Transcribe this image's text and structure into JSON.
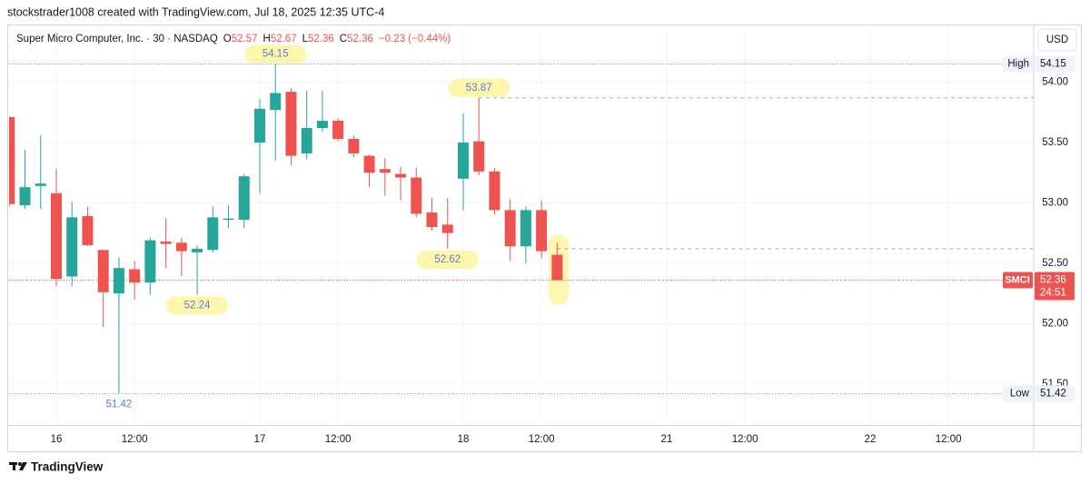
{
  "chart_data": {
    "type": "candlestick",
    "watermark": "stockstrader1008 created with TradingView.com, Jul 18, 2025 12:35 UTC-4",
    "title": "Super Micro Computer, Inc. · 30 · NASDAQ",
    "ohlc_keys": [
      "O",
      "H",
      "L",
      "C"
    ],
    "change": "−0.23 (−0.44%)",
    "currency": "USD",
    "symbol": "SMCI",
    "countdown": "24:51",
    "brand": "TradingView",
    "up_color": "#26a69a",
    "down_color": "#ef5350",
    "categories": [
      null,
      null,
      null,
      "16",
      null,
      null,
      null,
      null,
      "12:00",
      null,
      null,
      null,
      null,
      null,
      null,
      null,
      "17",
      null,
      null,
      null,
      null,
      "12:00",
      null,
      null,
      null,
      null,
      null,
      null,
      null,
      "18",
      null,
      null,
      null,
      null,
      "12:00",
      null,
      null,
      null,
      null,
      null,
      null,
      null,
      "21",
      null,
      null,
      null,
      null,
      "12:00",
      null,
      null,
      null,
      null,
      null,
      null,
      null,
      "22",
      null,
      null,
      null,
      null,
      "12:00",
      null,
      null,
      null,
      null,
      null
    ],
    "open": [
      53.71,
      52.98,
      53.14,
      53.08,
      52.39,
      52.89,
      52.61,
      52.25,
      52.45,
      52.34,
      52.68,
      52.67,
      52.59,
      52.61,
      52.86,
      52.86,
      53.5,
      53.77,
      53.92,
      53.41,
      53.62,
      53.68,
      53.53,
      53.39,
      53.28,
      53.24,
      53.21,
      52.92,
      52.82,
      53.2,
      53.51,
      53.26,
      52.94,
      52.64,
      52.94,
      52.57,
      null,
      null,
      null,
      null,
      null,
      null,
      null,
      null,
      null,
      null,
      null,
      null,
      null,
      null,
      null,
      null,
      null,
      null,
      null,
      null,
      null,
      null,
      null,
      null,
      null,
      null,
      null,
      null,
      null,
      null
    ],
    "high": [
      53.72,
      53.44,
      53.56,
      53.28,
      53.01,
      52.97,
      52.61,
      52.55,
      52.52,
      52.71,
      52.87,
      52.71,
      52.65,
      52.97,
      52.98,
      53.24,
      53.86,
      54.15,
      53.95,
      53.93,
      53.93,
      53.7,
      53.56,
      53.4,
      53.37,
      53.3,
      53.29,
      53.04,
      53.04,
      53.74,
      53.87,
      53.29,
      53.03,
      52.97,
      53.02,
      52.67,
      null,
      null,
      null,
      null,
      null,
      null,
      null,
      null,
      null,
      null,
      null,
      null,
      null,
      null,
      null,
      null,
      null,
      null,
      null,
      null,
      null,
      null,
      null,
      null,
      null,
      null,
      null,
      null,
      null,
      null
    ],
    "low": [
      52.97,
      52.95,
      52.95,
      52.31,
      52.31,
      52.64,
      51.97,
      51.42,
      52.2,
      52.24,
      52.46,
      52.39,
      52.24,
      52.59,
      52.79,
      52.79,
      53.08,
      53.35,
      53.31,
      53.36,
      53.59,
      53.51,
      53.38,
      53.13,
      53.06,
      53.02,
      52.88,
      52.77,
      52.62,
      52.94,
      53.23,
      52.9,
      52.52,
      52.5,
      52.54,
      52.36,
      null,
      null,
      null,
      null,
      null,
      null,
      null,
      null,
      null,
      null,
      null,
      null,
      null,
      null,
      null,
      null,
      null,
      null,
      null,
      null,
      null,
      null,
      null,
      null,
      null,
      null,
      null,
      null,
      null,
      null
    ],
    "close": [
      52.99,
      53.13,
      53.16,
      52.37,
      52.88,
      52.65,
      52.26,
      52.46,
      52.34,
      52.69,
      52.66,
      52.6,
      52.62,
      52.88,
      52.87,
      53.22,
      53.78,
      53.91,
      53.39,
      53.62,
      53.68,
      53.53,
      53.41,
      53.25,
      53.25,
      53.21,
      52.91,
      52.8,
      52.75,
      53.5,
      53.26,
      52.94,
      52.64,
      52.94,
      52.6,
      52.36,
      null,
      null,
      null,
      null,
      null,
      null,
      null,
      null,
      null,
      null,
      null,
      null,
      null,
      null,
      null,
      null,
      null,
      null,
      null,
      null,
      null,
      null,
      null,
      null,
      null,
      null,
      null,
      null,
      null,
      null
    ],
    "ylim": [
      51.16,
      54.47
    ],
    "yticks": [
      {
        "value": 51.5,
        "label": "51.50"
      },
      {
        "value": 52,
        "label": "52.00"
      },
      {
        "value": 52.5,
        "label": "52.50"
      },
      {
        "value": 53,
        "label": "53.00"
      },
      {
        "value": 53.5,
        "label": "53.50"
      },
      {
        "value": 54,
        "label": "54.00"
      }
    ],
    "grid": true,
    "high_marker": {
      "label": "High",
      "value": 54.15
    },
    "low_marker": {
      "label": "Low",
      "value": 51.42
    },
    "last": 52.36,
    "annotations": [
      {
        "value": 54.15,
        "bar": 17,
        "place": "above",
        "highlight": true
      },
      {
        "value": 53.87,
        "bar": 30,
        "place": "above",
        "highlight": true
      },
      {
        "value": 52.62,
        "bar": 28,
        "place": "below",
        "highlight": true
      },
      {
        "value": 52.24,
        "bar": 12,
        "place": "below",
        "highlight": true
      },
      {
        "value": 51.42,
        "bar": 7,
        "place": "below",
        "highlight": false
      }
    ],
    "levels": [
      {
        "value": 53.87,
        "from_bar": 30
      },
      {
        "value": 52.62,
        "from_bar": 35
      }
    ]
  }
}
